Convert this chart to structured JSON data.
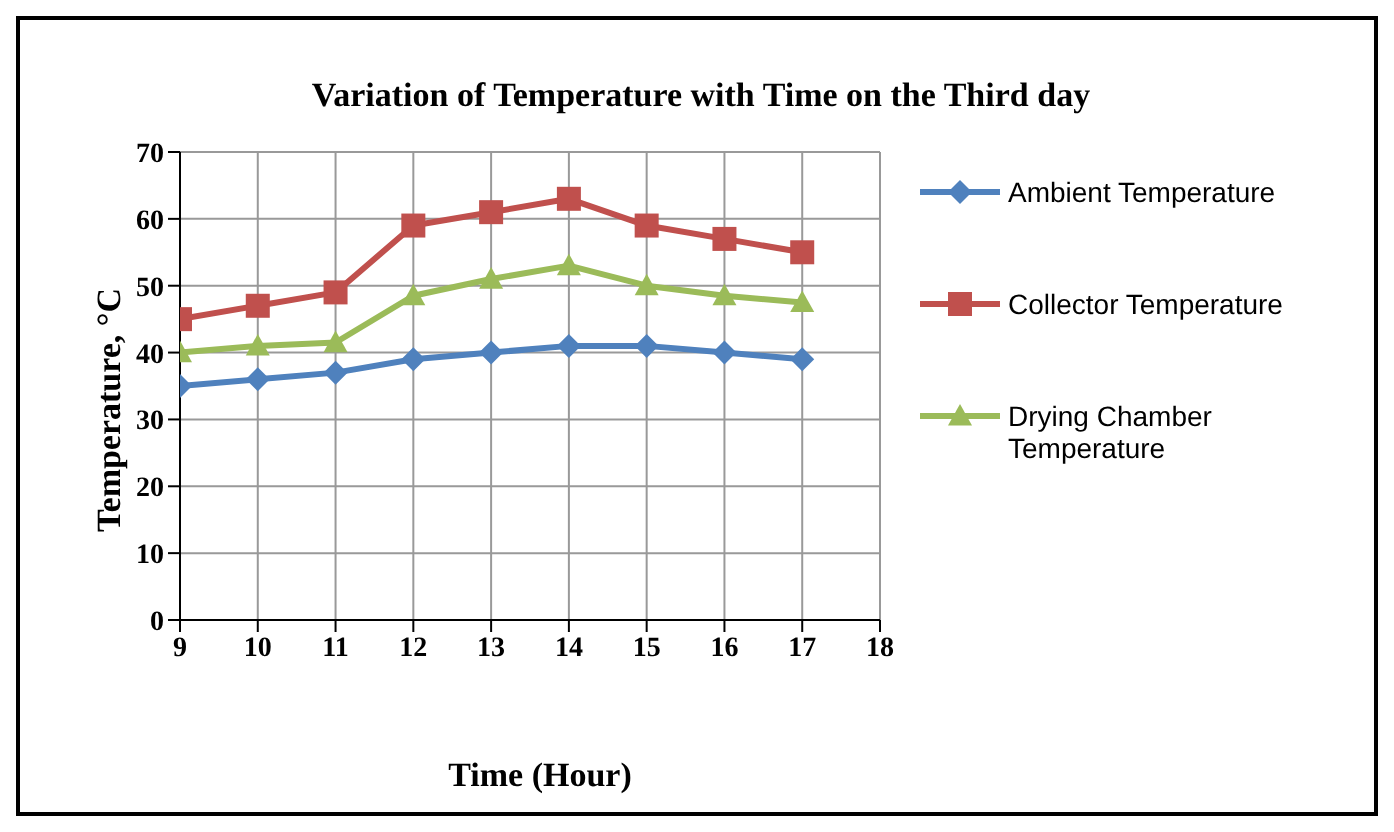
{
  "chart_data": {
    "type": "line",
    "title": "Variation of Temperature with Time on the Third day",
    "xlabel": "Time (Hour)",
    "ylabel": "Temperature, °C",
    "x": [
      9,
      10,
      11,
      12,
      13,
      14,
      15,
      16,
      17
    ],
    "series": [
      {
        "name": "Ambient Temperature",
        "color": "#4f81bd",
        "marker": "diamond",
        "values": [
          35,
          36,
          37,
          39,
          40,
          41,
          41,
          40,
          39
        ]
      },
      {
        "name": "Collector Temperature",
        "color": "#c0504d",
        "marker": "square",
        "values": [
          45,
          47,
          49,
          59,
          61,
          63,
          59,
          57,
          55
        ]
      },
      {
        "name": "Drying Chamber Temperature",
        "color": "#9bbb59",
        "marker": "triangle",
        "values": [
          40,
          41,
          41.5,
          48.5,
          51,
          53,
          50,
          48.5,
          47.5
        ]
      }
    ],
    "xlim": [
      9,
      18
    ],
    "xticks": [
      9,
      10,
      11,
      12,
      13,
      14,
      15,
      16,
      17,
      18
    ],
    "ylim": [
      0,
      70
    ],
    "yticks": [
      0,
      10,
      20,
      30,
      40,
      50,
      60,
      70
    ],
    "grid": true,
    "legend": "right",
    "line_style": "solid"
  }
}
